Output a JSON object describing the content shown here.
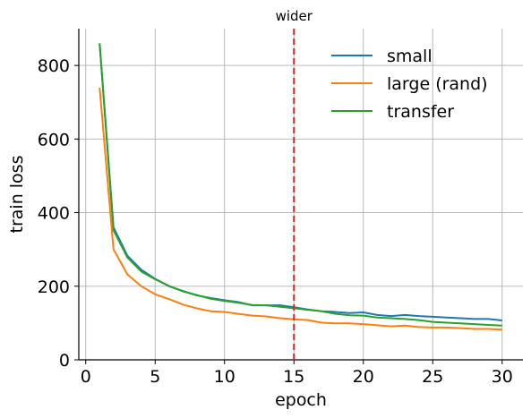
{
  "chart_data": {
    "type": "line",
    "xlabel": "epoch",
    "ylabel": "train loss",
    "xlim": [
      -0.5,
      31.5
    ],
    "ylim": [
      0,
      900
    ],
    "xticks": [
      0,
      5,
      10,
      15,
      20,
      25,
      30
    ],
    "yticks": [
      0,
      200,
      400,
      600,
      800
    ],
    "grid": true,
    "legend_position": "top-right",
    "x": [
      1,
      2,
      3,
      4,
      5,
      6,
      7,
      8,
      9,
      10,
      11,
      12,
      13,
      14,
      15,
      16,
      17,
      18,
      19,
      20,
      21,
      22,
      23,
      24,
      25,
      26,
      27,
      28,
      29,
      30
    ],
    "series": [
      {
        "name": "small",
        "color": "#1f77b4",
        "values": [
          860,
          360,
          283,
          245,
          220,
          200,
          187,
          175,
          168,
          162,
          157,
          148,
          148,
          148,
          143,
          137,
          132,
          130,
          127,
          129,
          122,
          119,
          122,
          119,
          117,
          115,
          113,
          111,
          111,
          107
        ]
      },
      {
        "name": "large (rand)",
        "color": "#ff7f0e",
        "values": [
          740,
          300,
          232,
          200,
          178,
          165,
          150,
          140,
          132,
          130,
          125,
          120,
          118,
          113,
          110,
          108,
          101,
          99,
          99,
          97,
          94,
          91,
          93,
          89,
          88,
          88,
          86,
          84,
          84,
          82
        ]
      },
      {
        "name": "transfer",
        "color": "#2ca02c",
        "values": [
          860,
          352,
          278,
          240,
          219,
          201,
          186,
          176,
          166,
          160,
          155,
          149,
          148,
          144,
          140,
          136,
          132,
          125,
          121,
          120,
          115,
          113,
          111,
          108,
          103,
          101,
          99,
          97,
          95,
          93
        ]
      }
    ],
    "annotations": [
      {
        "type": "vline",
        "x": 15,
        "label": "wider",
        "color": "#d62728",
        "style": "dashed"
      }
    ]
  }
}
